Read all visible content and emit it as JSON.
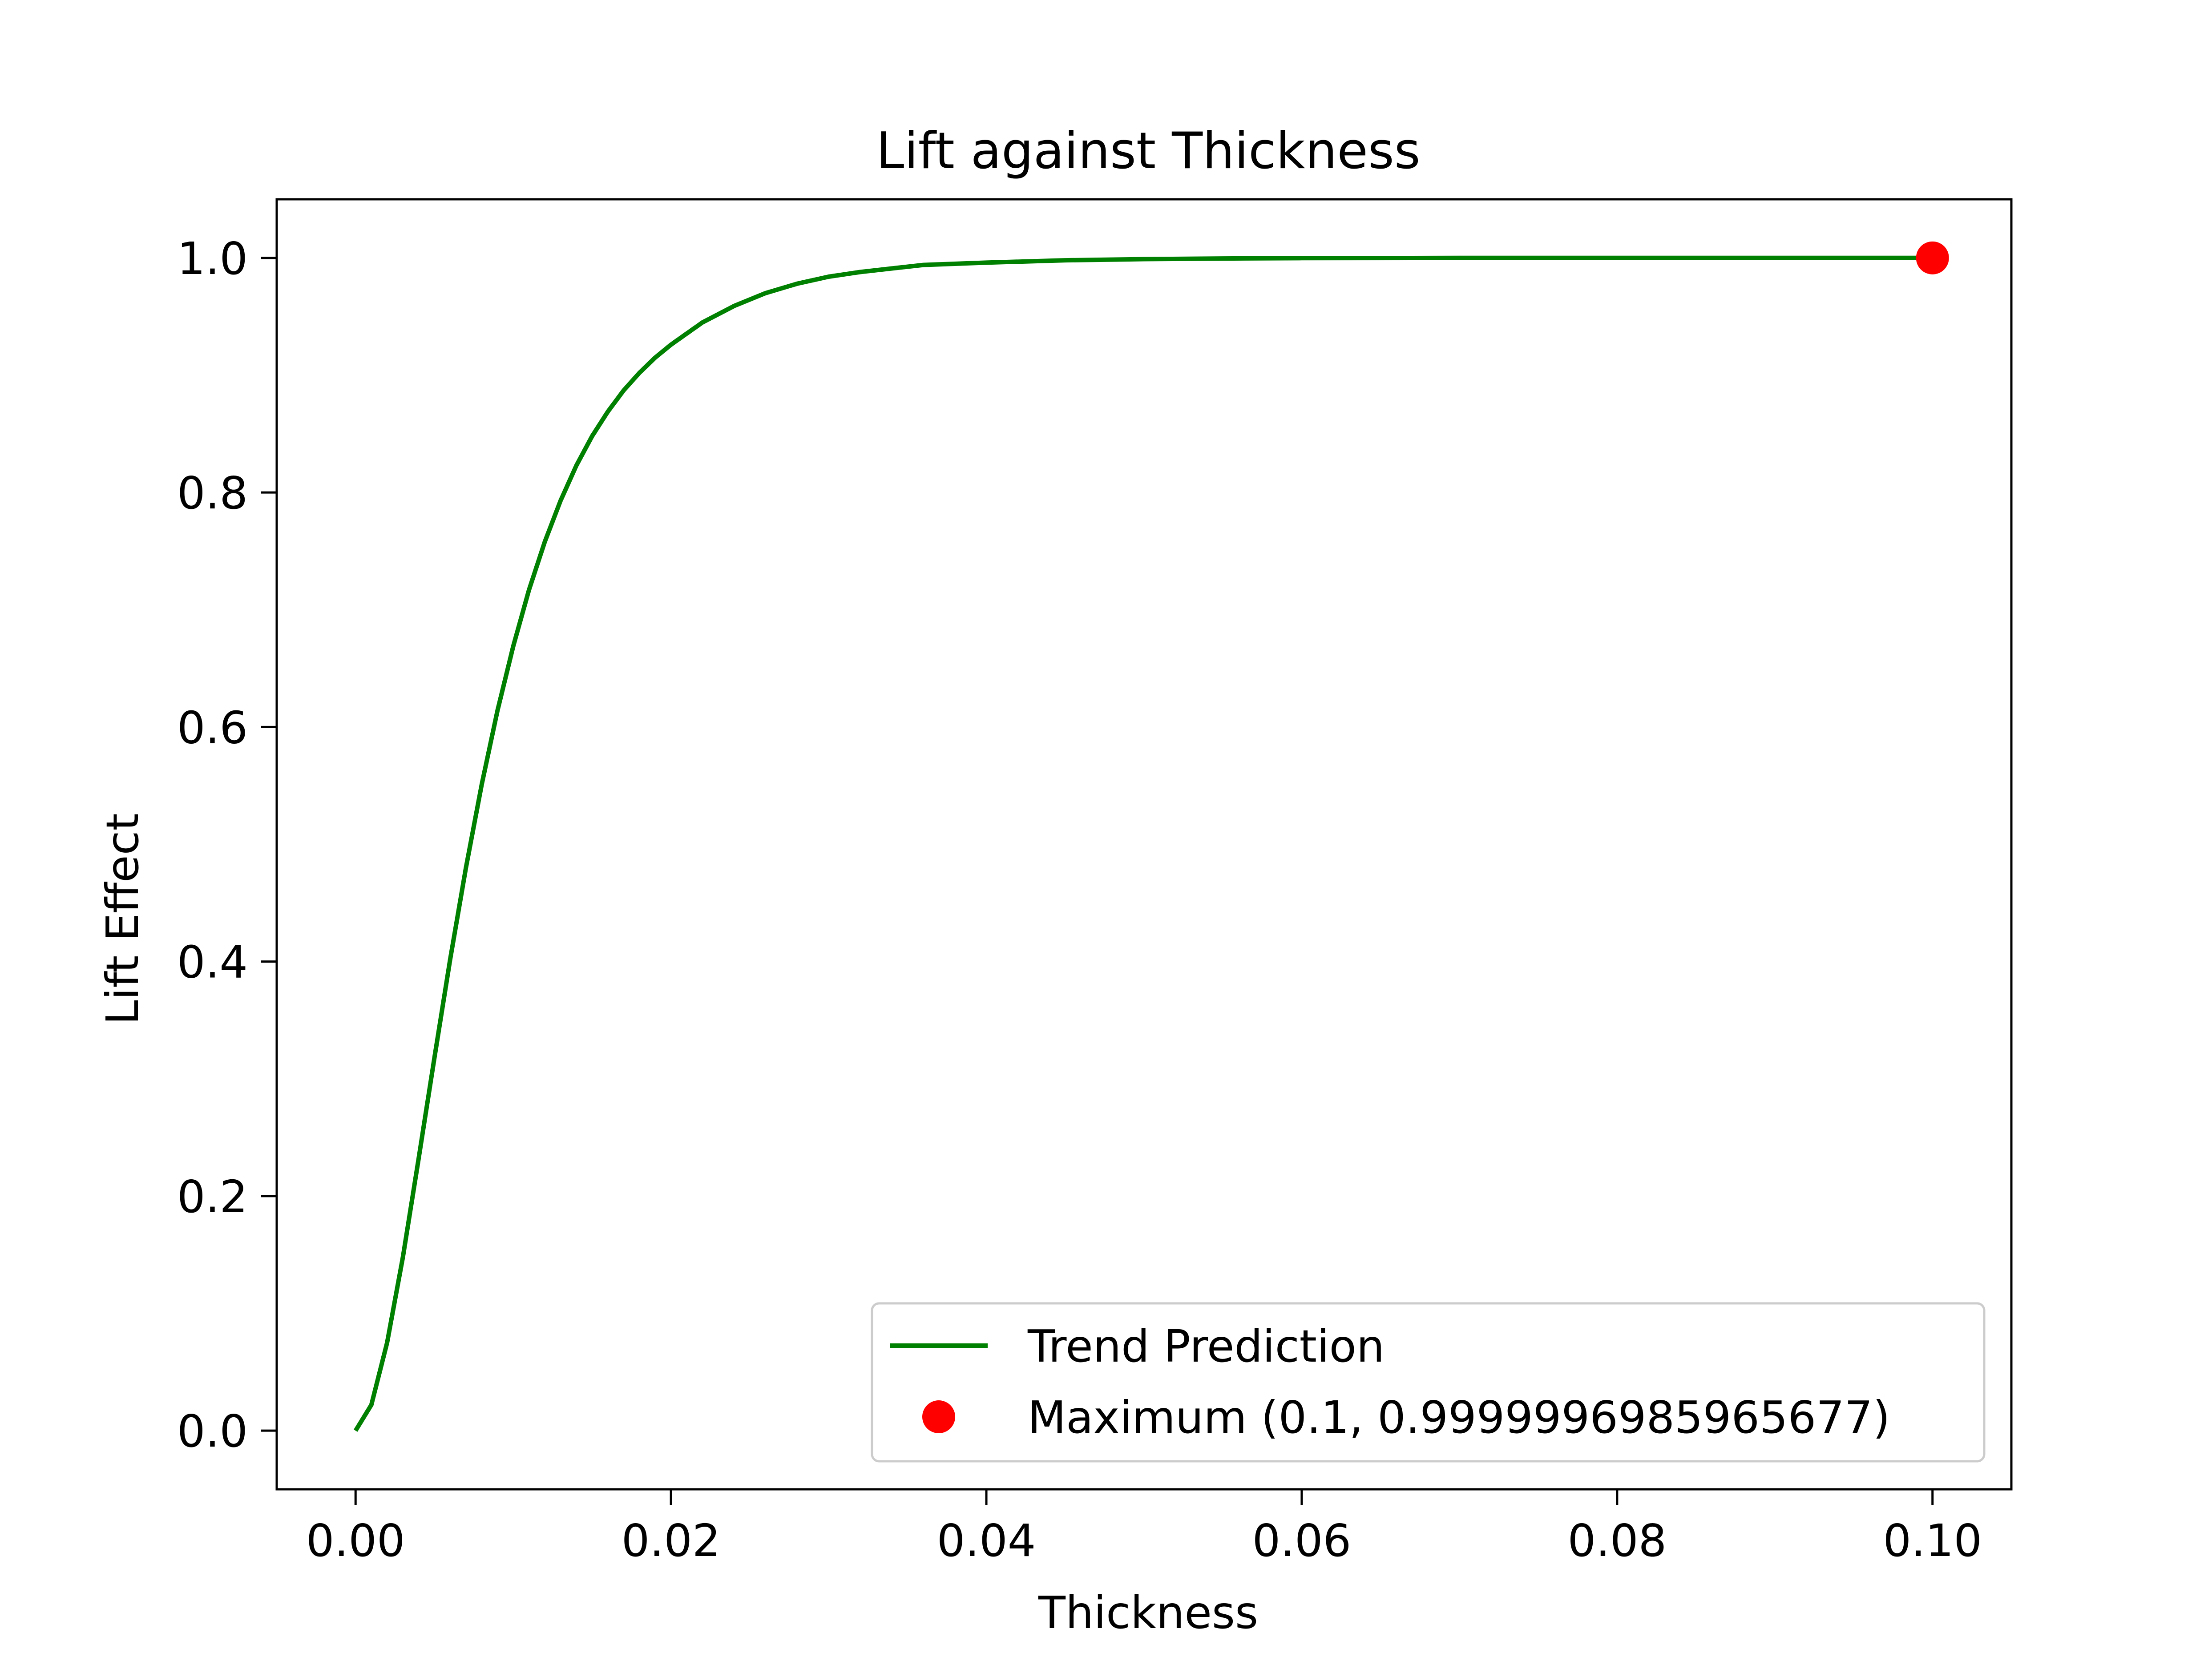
{
  "chart_data": {
    "type": "line",
    "title": "Lift against Thickness",
    "xlabel": "Thickness",
    "ylabel": "Lift Effect",
    "xlim": [
      -0.005,
      0.105
    ],
    "ylim": [
      -0.05,
      1.05
    ],
    "x_ticks": [
      0.0,
      0.02,
      0.04,
      0.06,
      0.08,
      0.1
    ],
    "x_tick_labels": [
      "0.00",
      "0.02",
      "0.04",
      "0.06",
      "0.08",
      "0.10"
    ],
    "y_ticks": [
      0.0,
      0.2,
      0.4,
      0.6,
      0.8,
      1.0
    ],
    "y_tick_labels": [
      "0.0",
      "0.2",
      "0.4",
      "0.6",
      "0.8",
      "1.0"
    ],
    "grid": false,
    "legend_position": "lower-right",
    "series": [
      {
        "name": "Trend Prediction",
        "color": "#008000",
        "style": "line",
        "x": [
          0.0,
          0.001,
          0.002,
          0.003,
          0.004,
          0.005,
          0.006,
          0.007,
          0.008,
          0.009,
          0.01,
          0.011,
          0.012,
          0.013,
          0.014,
          0.015,
          0.016,
          0.017,
          0.018,
          0.019,
          0.02,
          0.022,
          0.024,
          0.026,
          0.028,
          0.03,
          0.032,
          0.034,
          0.036,
          0.038,
          0.04,
          0.045,
          0.05,
          0.055,
          0.06,
          0.07,
          0.08,
          0.09,
          0.1
        ],
        "y": [
          0.0,
          0.022,
          0.075,
          0.148,
          0.232,
          0.318,
          0.402,
          0.48,
          0.551,
          0.614,
          0.669,
          0.717,
          0.758,
          0.793,
          0.823,
          0.848,
          0.869,
          0.887,
          0.902,
          0.915,
          0.926,
          0.945,
          0.959,
          0.97,
          0.978,
          0.984,
          0.988,
          0.991,
          0.994,
          0.995,
          0.996,
          0.998,
          0.999,
          0.9995,
          0.9998,
          0.99999,
          1.0,
          1.0,
          1.0
        ]
      },
      {
        "name": "Maximum (0.1, 0.9999996985965677)",
        "color": "#ff0000",
        "style": "marker",
        "x": [
          0.1
        ],
        "y": [
          0.9999996985965677
        ]
      }
    ]
  }
}
